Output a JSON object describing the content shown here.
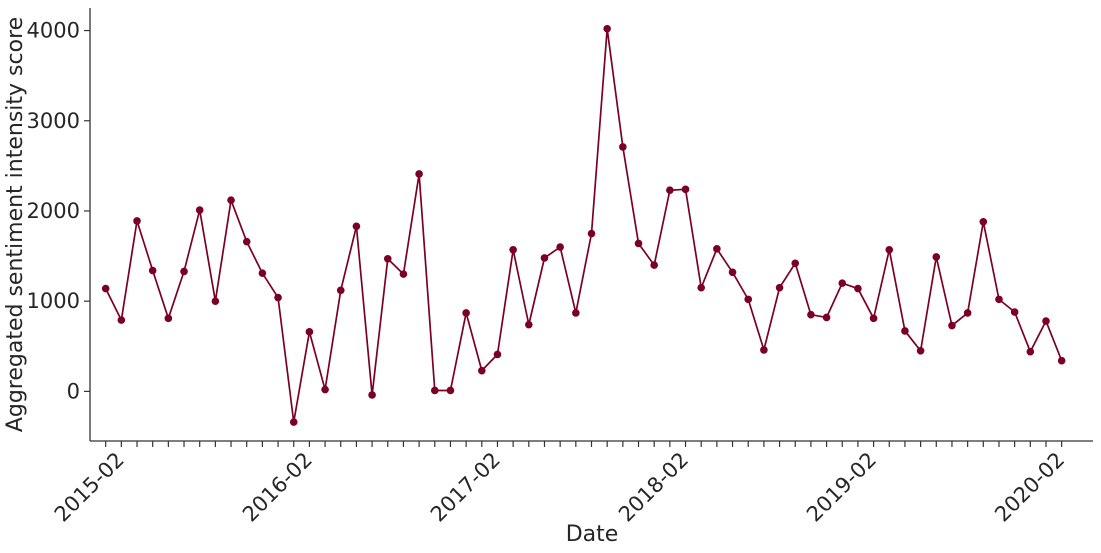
{
  "chart_data": {
    "type": "line",
    "xlabel": "Date",
    "ylabel": "Aggregated sentiment intensity score",
    "ylim": [
      -550,
      4250
    ],
    "yticks": [
      0,
      1000,
      2000,
      3000,
      4000
    ],
    "x_tick_labels": [
      "2015-02",
      "2016-02",
      "2017-02",
      "2018-02",
      "2019-02",
      "2020-02"
    ],
    "x_start": "2014-12",
    "x_end": "2020-04",
    "grid": false,
    "legend": "none",
    "color": "#7b0025",
    "series": [
      {
        "x": [
          "2015-01",
          "2015-02",
          "2015-03",
          "2015-04",
          "2015-05",
          "2015-06",
          "2015-07",
          "2015-08",
          "2015-09",
          "2015-10",
          "2015-11",
          "2015-12",
          "2016-01",
          "2016-02",
          "2016-03",
          "2016-04",
          "2016-05",
          "2016-06",
          "2016-07",
          "2016-08",
          "2016-09",
          "2016-10",
          "2016-11",
          "2016-12",
          "2017-01",
          "2017-02",
          "2017-03",
          "2017-04",
          "2017-05",
          "2017-06",
          "2017-07",
          "2017-08",
          "2017-09",
          "2017-10",
          "2017-11",
          "2017-12",
          "2018-01",
          "2018-02",
          "2018-03",
          "2018-04",
          "2018-05",
          "2018-06",
          "2018-07",
          "2018-08",
          "2018-09",
          "2018-10",
          "2018-11",
          "2018-12",
          "2019-01",
          "2019-02",
          "2019-03",
          "2019-04",
          "2019-05",
          "2019-06",
          "2019-07",
          "2019-08",
          "2019-09",
          "2019-10",
          "2019-11",
          "2019-12",
          "2020-01",
          "2020-02"
        ],
        "values": [
          1140,
          790,
          1890,
          1340,
          810,
          1330,
          2010,
          1000,
          2120,
          1660,
          1310,
          1040,
          -340,
          660,
          20,
          1120,
          1830,
          -40,
          1470,
          1300,
          2410,
          10,
          10,
          870,
          230,
          410,
          1570,
          740,
          1480,
          1600,
          870,
          1750,
          4020,
          2710,
          1640,
          1400,
          2230,
          2240,
          1150,
          1580,
          1320,
          1020,
          460,
          1150,
          1420,
          850,
          820,
          1200,
          1140,
          810,
          1570,
          670,
          450,
          1490,
          730,
          870,
          1880,
          1020,
          880,
          440,
          780,
          340
        ]
      }
    ]
  }
}
